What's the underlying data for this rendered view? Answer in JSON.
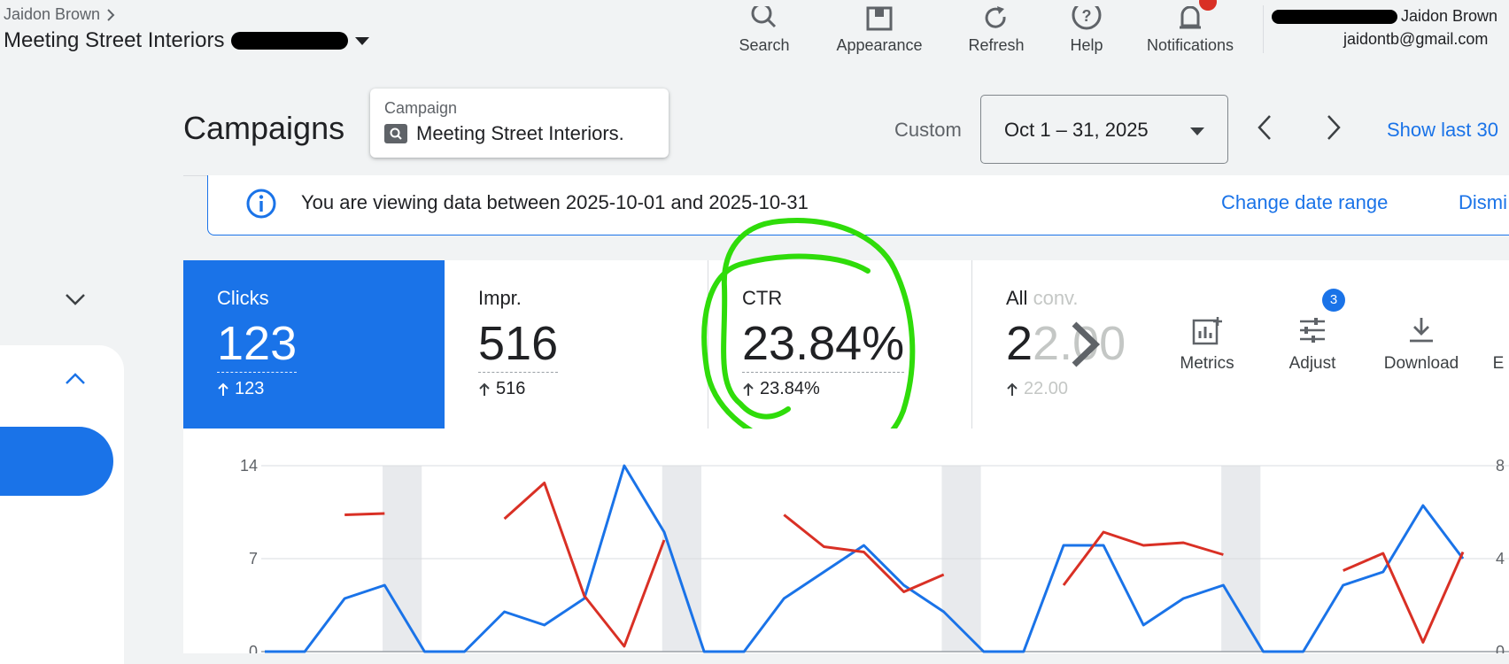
{
  "header": {
    "breadcrumb": "Jaidon Brown",
    "account_title": "Meeting Street Interiors",
    "tools": [
      {
        "label": "Search",
        "icon": "search-icon"
      },
      {
        "label": "Appearance",
        "icon": "appearance-icon"
      },
      {
        "label": "Refresh",
        "icon": "refresh-icon"
      },
      {
        "label": "Help",
        "icon": "help-icon"
      },
      {
        "label": "Notifications",
        "icon": "bell-icon"
      }
    ],
    "user_name": "Jaidon Brown",
    "user_email": "jaidontb@gmail.com"
  },
  "page": {
    "title": "Campaigns",
    "campaign_label": "Campaign",
    "campaign_name": "Meeting Street Interiors.",
    "date_mode": "Custom",
    "date_range": "Oct 1 – 31, 2025",
    "show_last": "Show last 30"
  },
  "banner": {
    "text": "You are viewing data between 2025-10-01 and 2025-10-31",
    "change_link": "Change date range",
    "dismiss_link": "Dismi"
  },
  "metrics": [
    {
      "label": "Clicks",
      "value": "123",
      "delta": "123",
      "selected": true
    },
    {
      "label": "Impr.",
      "value": "516",
      "delta": "516",
      "selected": false
    },
    {
      "label": "CTR",
      "value": "23.84%",
      "delta": "23.84%",
      "selected": false
    },
    {
      "label": "All",
      "label_faded": "conv.",
      "value": "2",
      "value_faded": "2.00",
      "delta": "22.00",
      "selected": false
    }
  ],
  "tools": {
    "metrics": "Metrics",
    "adjust": "Adjust",
    "adjust_badge": "3",
    "download": "Download",
    "cut_label": "E"
  },
  "colors": {
    "accent": "#1a73e8",
    "series_red": "#d93025",
    "annotation": "#2fdc0a"
  },
  "chart_data": {
    "type": "line",
    "y_ticks_left": [
      "14",
      "7",
      "0"
    ],
    "y_ticks_right_partial": [
      "8",
      "4",
      "0"
    ],
    "ylim_left": [
      0,
      14
    ],
    "series": [
      {
        "name": "",
        "color": "#1a73e8",
        "axis": "left",
        "values": [
          0,
          0,
          4,
          5,
          0,
          0,
          3,
          2,
          4,
          14,
          9,
          0,
          0,
          4,
          6,
          8,
          5,
          3,
          0,
          0,
          8,
          8,
          2,
          4,
          5,
          0,
          0,
          5,
          6,
          11,
          7
        ]
      },
      {
        "name": "",
        "color": "#d93025",
        "axis": "left",
        "values": [
          null,
          null,
          10.3,
          10.4,
          null,
          null,
          10,
          12.7,
          4.2,
          0.4,
          8.4,
          null,
          null,
          10.3,
          7.9,
          7.5,
          4.5,
          5.8,
          null,
          null,
          5,
          9,
          8,
          8.2,
          7.3,
          null,
          null,
          6.1,
          7.4,
          0.7,
          7.5
        ]
      }
    ],
    "weekend_bands": [
      3,
      10,
      17,
      24
    ],
    "annotation": "green hand-drawn circle around CTR metric"
  }
}
